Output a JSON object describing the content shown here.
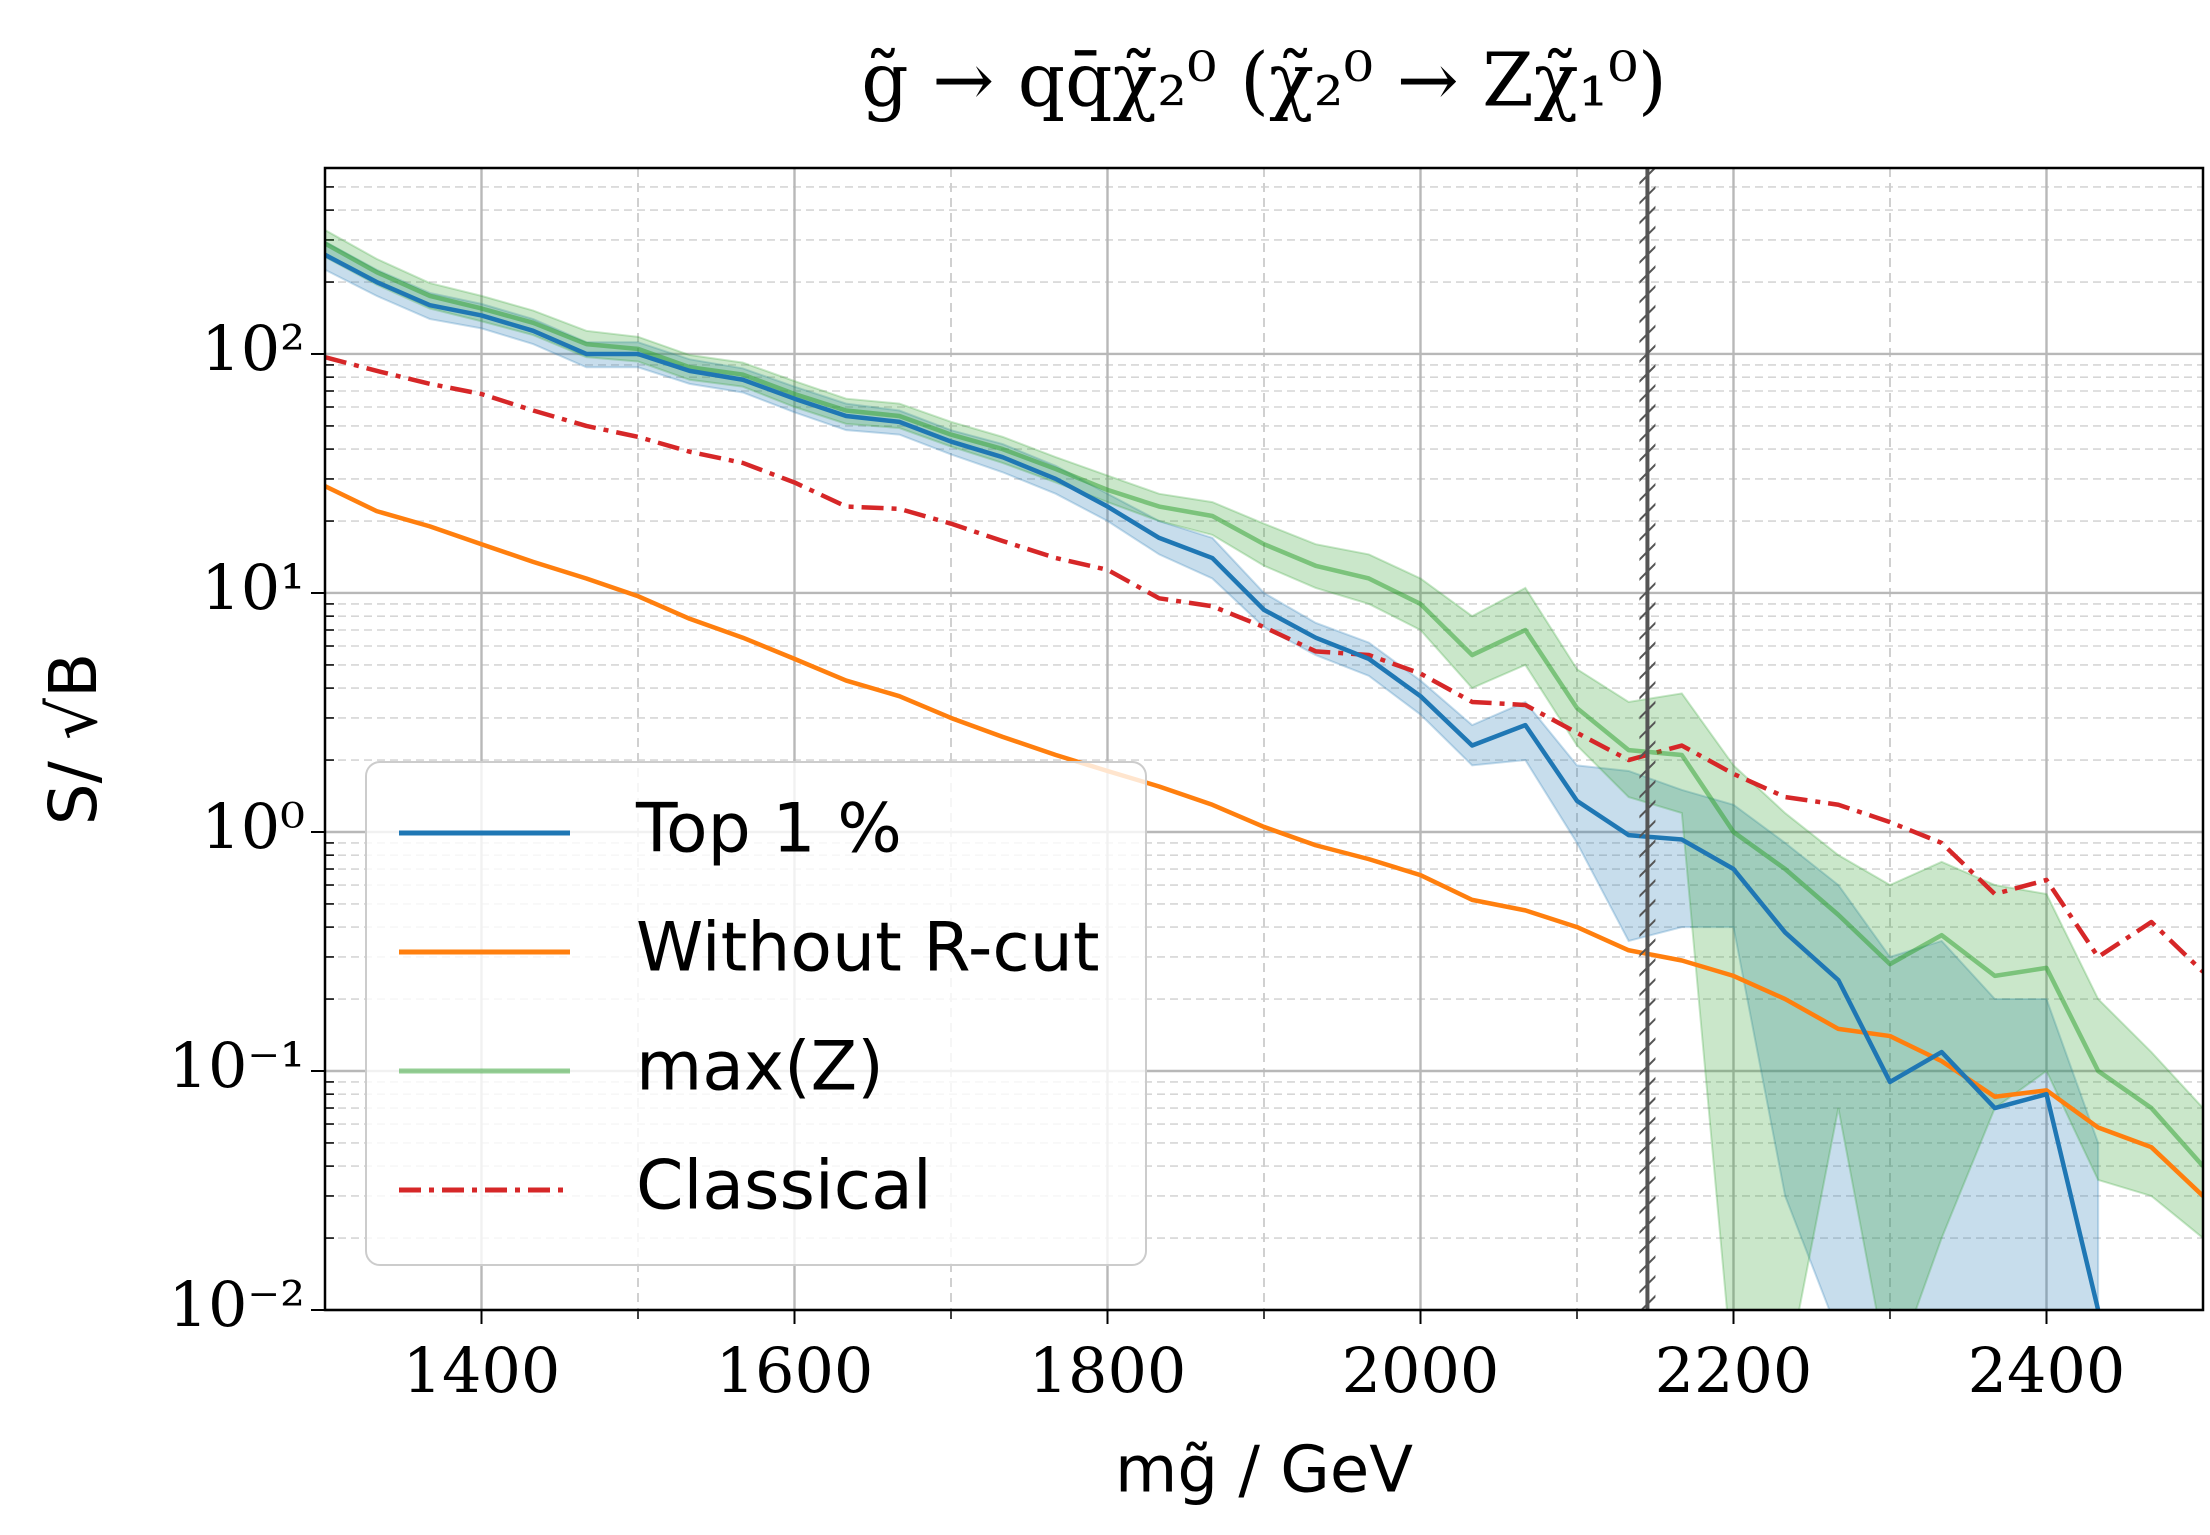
{
  "chart_data": {
    "type": "line",
    "title": "g̃ → qq̄χ̃₂⁰  (χ̃₂⁰ → Zχ̃₁⁰)",
    "x_label": "mg̃ / GeV",
    "y_label": "S/ √B",
    "x": [
      1300,
      1333,
      1367,
      1400,
      1433,
      1467,
      1500,
      1533,
      1567,
      1600,
      1633,
      1667,
      1700,
      1733,
      1767,
      1800,
      1833,
      1867,
      1900,
      1933,
      1967,
      2000,
      2033,
      2067,
      2100,
      2133,
      2167,
      2200,
      2233,
      2267,
      2300,
      2333,
      2367,
      2400,
      2433,
      2467,
      2500
    ],
    "series": [
      {
        "name": "Top 1 %",
        "color": "#1f77b4",
        "alpha": 1,
        "linestyle": "solid",
        "values": [
          260,
          200,
          160,
          145,
          125,
          100,
          100,
          85,
          78,
          65,
          55,
          52,
          43,
          37,
          30,
          23,
          17,
          14,
          8.5,
          6.5,
          5.3,
          3.7,
          2.3,
          2.8,
          1.35,
          0.97,
          0.93,
          0.7,
          0.38,
          0.24,
          0.09,
          0.12,
          0.07,
          0.08,
          0.01,
          null,
          null
        ],
        "lower": [
          225,
          175,
          140,
          128,
          110,
          88,
          88,
          75,
          69,
          57,
          48,
          46,
          38,
          32,
          26,
          20,
          14.5,
          11.5,
          7.2,
          5.5,
          4.5,
          3.1,
          1.9,
          2.0,
          0.9,
          0.35,
          0.4,
          0.4,
          0.03,
          0.008,
          0.005,
          0.005,
          0.005,
          0.005,
          0.001,
          null,
          null
        ],
        "upper": [
          295,
          225,
          180,
          162,
          140,
          112,
          112,
          95,
          87,
          73,
          62,
          58,
          48,
          42,
          34,
          26,
          20,
          17,
          10,
          7.5,
          6.2,
          4.3,
          2.8,
          3.5,
          1.9,
          1.8,
          1.5,
          1.3,
          0.9,
          0.6,
          0.3,
          0.35,
          0.2,
          0.2,
          0.05,
          null,
          null
        ]
      },
      {
        "name": "Without R-cut",
        "color": "#ff7f0e",
        "alpha": 1,
        "linestyle": "solid",
        "values": [
          28,
          22,
          19,
          16,
          13.5,
          11.5,
          9.7,
          7.8,
          6.5,
          5.3,
          4.3,
          3.7,
          3.0,
          2.5,
          2.1,
          1.8,
          1.55,
          1.3,
          1.05,
          0.88,
          0.77,
          0.66,
          0.52,
          0.47,
          0.4,
          0.32,
          0.29,
          0.25,
          0.2,
          0.15,
          0.14,
          0.11,
          0.078,
          0.083,
          0.058,
          0.048,
          0.03
        ]
      },
      {
        "name": "max(Z)",
        "color": "#2ca02c",
        "alpha": 0.5,
        "linestyle": "solid",
        "values": [
          290,
          220,
          175,
          155,
          135,
          110,
          105,
          88,
          82,
          68,
          58,
          55,
          46,
          40,
          33,
          27,
          23,
          21,
          16,
          13,
          11.5,
          9,
          5.5,
          7,
          3.3,
          2.2,
          2.1,
          1.0,
          0.7,
          0.45,
          0.28,
          0.37,
          0.25,
          0.27,
          0.1,
          0.07,
          0.04
        ],
        "lower": [
          255,
          195,
          155,
          137,
          120,
          97,
          93,
          78,
          73,
          60,
          51,
          49,
          41,
          35,
          29,
          24,
          20,
          17.5,
          13,
          10.5,
          9,
          7,
          4,
          5,
          2.3,
          1.4,
          1.2,
          0.005,
          0.005,
          0.07,
          0.005,
          0.02,
          0.07,
          0.1,
          0.035,
          0.03,
          0.02
        ],
        "upper": [
          330,
          250,
          198,
          175,
          152,
          125,
          118,
          99,
          92,
          77,
          65,
          62,
          52,
          45,
          37,
          31,
          26,
          24,
          19.5,
          16,
          14.5,
          11.5,
          8,
          10.5,
          4.8,
          3.5,
          3.8,
          1.9,
          1.2,
          0.8,
          0.6,
          0.75,
          0.6,
          0.55,
          0.2,
          0.12,
          0.07
        ]
      },
      {
        "name": "Classical",
        "color": "#d62728",
        "alpha": 1,
        "linestyle": "dashdot",
        "values": [
          97,
          85,
          75,
          68,
          58,
          50,
          45,
          39,
          35,
          29,
          23,
          22.5,
          19.5,
          16.5,
          14,
          12.5,
          9.5,
          8.8,
          7.2,
          5.7,
          5.5,
          4.6,
          3.5,
          3.4,
          2.6,
          2.0,
          2.3,
          1.75,
          1.4,
          1.3,
          1.1,
          0.9,
          0.55,
          0.63,
          0.3,
          0.42,
          0.26
        ]
      }
    ],
    "vline": 2145,
    "xlim": [
      1300,
      2500
    ],
    "xticks": [
      1400,
      1600,
      1800,
      2000,
      2200,
      2400
    ],
    "xticks_minor": [
      1500,
      1700,
      1900,
      2100,
      2300
    ],
    "ylim": [
      0.01,
      600
    ],
    "yscale": "log",
    "yticks": [
      {
        "value": 0.01,
        "label": "10⁻²"
      },
      {
        "value": 0.1,
        "label": "10⁻¹"
      },
      {
        "value": 1,
        "label": "10⁰"
      },
      {
        "value": 10,
        "label": "10¹"
      },
      {
        "value": 100,
        "label": "10²"
      }
    ],
    "grid": true,
    "minor_grid": true,
    "legend": "lower left"
  }
}
